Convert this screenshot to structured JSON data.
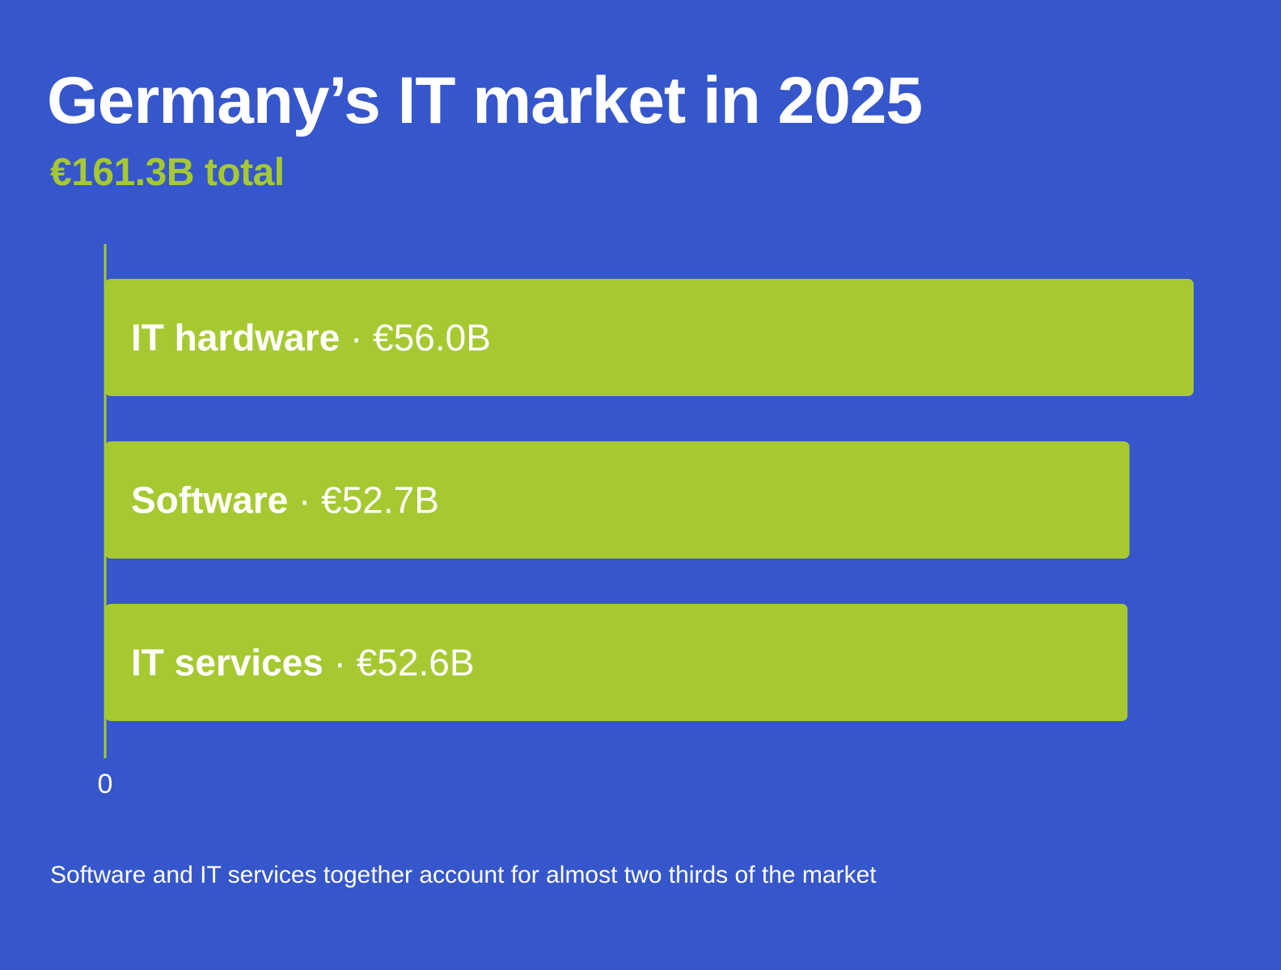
{
  "colors": {
    "background": "#3656cb",
    "accent": "#a6c932",
    "text": "#ffffff"
  },
  "header": {
    "title": "Germany’s IT market in 2025",
    "subtitle": "€161.3B total"
  },
  "chart_data": {
    "type": "bar",
    "orientation": "horizontal",
    "categories": [
      "IT hardware",
      "Software",
      "IT services"
    ],
    "values": [
      56.0,
      52.7,
      52.6
    ],
    "value_labels": [
      "€56.0B",
      "€52.7B",
      "€52.6B"
    ],
    "separator": " · ",
    "x_ticks": [
      "0"
    ],
    "xlim": [
      0,
      56.0
    ],
    "grid": false,
    "legend": "none"
  },
  "footnote": "Software and IT services together account for almost two thirds of the market"
}
